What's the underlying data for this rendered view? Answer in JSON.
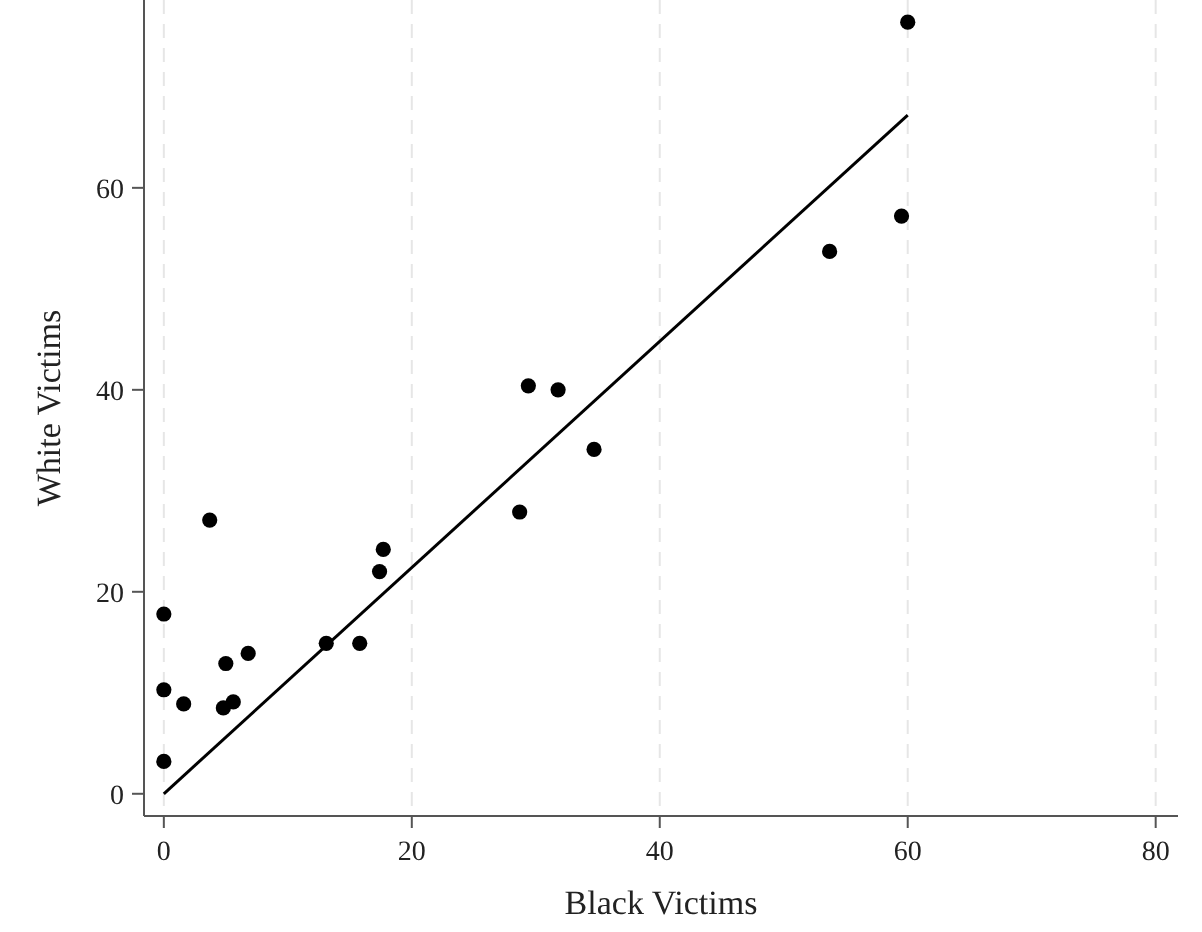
{
  "chart_data": {
    "type": "scatter",
    "xlabel": "Black Victims",
    "ylabel": "White Victims",
    "xlim": [
      -1.6,
      81.8
    ],
    "ylim": [
      -2.2,
      78.6
    ],
    "xticks": [
      0,
      20,
      40,
      60,
      80
    ],
    "yticks": [
      0,
      20,
      40,
      60
    ],
    "grid": "x",
    "marker": "circle",
    "series": [
      {
        "color": "#000000",
        "x": [
          0,
          0,
          0,
          1.6,
          3.7,
          4.8,
          5.6,
          5.0,
          6.8,
          13.1,
          15.8,
          17.4,
          17.7,
          29.4,
          31.8,
          34.7,
          28.7,
          53.7,
          59.5,
          60
        ],
        "values": [
          3.2,
          10.3,
          17.8,
          8.9,
          27.1,
          8.5,
          9.1,
          12.9,
          13.9,
          14.9,
          14.9,
          22.0,
          24.2,
          40.4,
          40.0,
          34.1,
          27.9,
          53.7,
          57.2,
          76.4
        ]
      },
      {
        "type": "line",
        "color": "#000000",
        "x": [
          0,
          60
        ],
        "values": [
          0,
          67.2
        ],
        "marker": "none"
      }
    ]
  }
}
